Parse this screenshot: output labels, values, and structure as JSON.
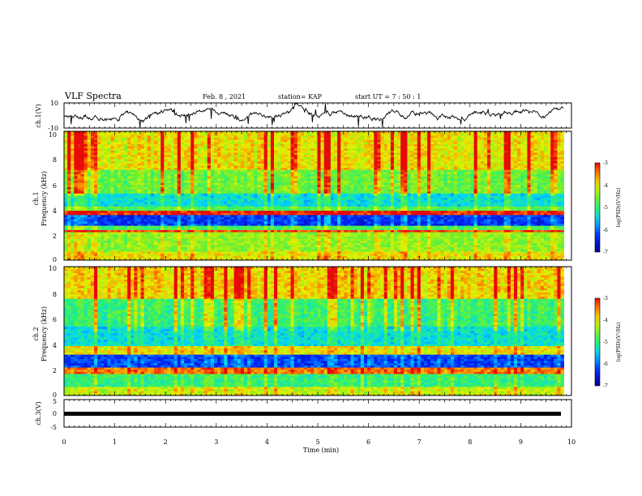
{
  "header": {
    "title": "VLF Spectra",
    "date": "Feb. 8 , 2021",
    "station": "station= KAP",
    "start": "start  UT  =   7 : 50 : 1"
  },
  "chart_data": [
    {
      "type": "line",
      "id": "ch1-waveform",
      "ylabel": "ch.1(V)",
      "ylim": [
        -10,
        10
      ],
      "yticks": [
        "10",
        "-10"
      ],
      "xlim": [
        0,
        10
      ]
    },
    {
      "type": "heatmap",
      "id": "ch1-spectrogram",
      "ylabel_line1": "ch.1",
      "ylabel_line2": "Frequency (kHz)",
      "ylim": [
        0,
        10
      ],
      "yticks": [
        "0",
        "2",
        "4",
        "6",
        "8",
        "10"
      ],
      "xlim": [
        0,
        10
      ],
      "data_extent_min": 9.85,
      "colorbar": {
        "label": "log(PSD)(V²/Hz)",
        "range": [
          -7,
          -3
        ],
        "ticks": [
          "-3",
          "-4",
          "-5",
          "-6",
          "-7"
        ]
      }
    },
    {
      "type": "heatmap",
      "id": "ch2-spectrogram",
      "ylabel_line1": "ch.2",
      "ylabel_line2": "Frequency (kHz)",
      "ylim": [
        0,
        10
      ],
      "yticks": [
        "0",
        "2",
        "4",
        "6",
        "8",
        "10"
      ],
      "xlim": [
        0,
        10
      ],
      "data_extent_min": 9.85,
      "colorbar": {
        "label": "log(PSD)(V²/Hz)",
        "range": [
          -7,
          -3
        ],
        "ticks": [
          "-3",
          "-4",
          "-5",
          "-6",
          "-7"
        ]
      }
    },
    {
      "type": "line",
      "id": "ch3-waveform",
      "ylabel": "ch.3(V)",
      "ylim": [
        -5,
        5
      ],
      "yticks": [
        "5",
        "0",
        "-5"
      ],
      "xlim": [
        0,
        10
      ],
      "xlabel": "Time (min)",
      "xticks": [
        "0",
        "1",
        "2",
        "3",
        "4",
        "5",
        "6",
        "7",
        "8",
        "9",
        "10"
      ]
    }
  ],
  "colors": {
    "axis": "#000000",
    "trace": "#000000"
  }
}
